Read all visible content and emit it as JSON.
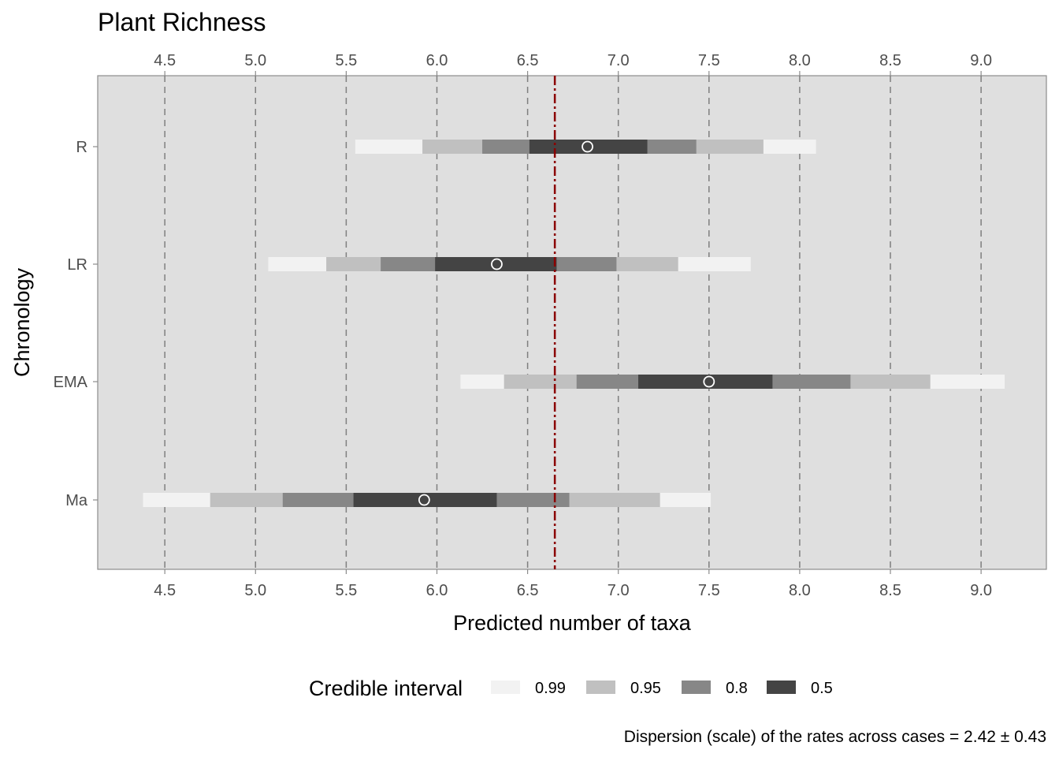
{
  "chart_data": {
    "type": "interval",
    "title": "Plant Richness",
    "xlabel": "Predicted number of taxa",
    "ylabel": "Chronology",
    "xlim": [
      4.13,
      9.36
    ],
    "x_ticks": [
      "4.5",
      "5.0",
      "5.5",
      "6.0",
      "6.5",
      "7.0",
      "7.5",
      "8.0",
      "8.5",
      "9.0"
    ],
    "grid": "vertical dashed",
    "reference_line": 6.65,
    "categories": [
      "R",
      "LR",
      "EMA",
      "Ma"
    ],
    "levels": [
      {
        "label": "0.99",
        "color": "#f2f2f2"
      },
      {
        "label": "0.95",
        "color": "#c0c0c0"
      },
      {
        "label": "0.8",
        "color": "#878787"
      },
      {
        "label": "0.5",
        "color": "#444444"
      }
    ],
    "series": [
      {
        "category": "R",
        "point": 6.83,
        "intervals": {
          "0.99": [
            5.55,
            8.09
          ],
          "0.95": [
            5.92,
            7.8
          ],
          "0.8": [
            6.25,
            7.43
          ],
          "0.5": [
            6.51,
            7.16
          ]
        }
      },
      {
        "category": "LR",
        "point": 6.33,
        "intervals": {
          "0.99": [
            5.07,
            7.73
          ],
          "0.95": [
            5.39,
            7.33
          ],
          "0.8": [
            5.69,
            6.99
          ],
          "0.5": [
            5.99,
            6.66
          ]
        }
      },
      {
        "category": "EMA",
        "point": 7.5,
        "intervals": {
          "0.99": [
            6.13,
            9.13
          ],
          "0.95": [
            6.37,
            8.72
          ],
          "0.8": [
            6.77,
            8.28
          ],
          "0.5": [
            7.11,
            7.85
          ]
        }
      },
      {
        "category": "Ma",
        "point": 5.93,
        "intervals": {
          "0.99": [
            4.38,
            7.51
          ],
          "0.95": [
            4.75,
            7.23
          ],
          "0.8": [
            5.15,
            6.73
          ],
          "0.5": [
            5.54,
            6.33
          ]
        }
      }
    ],
    "legend": {
      "title": "Credible interval",
      "placement": "bottom"
    },
    "caption": "Dispersion (scale) of the rates across cases = 2.42 ± 0.43"
  }
}
